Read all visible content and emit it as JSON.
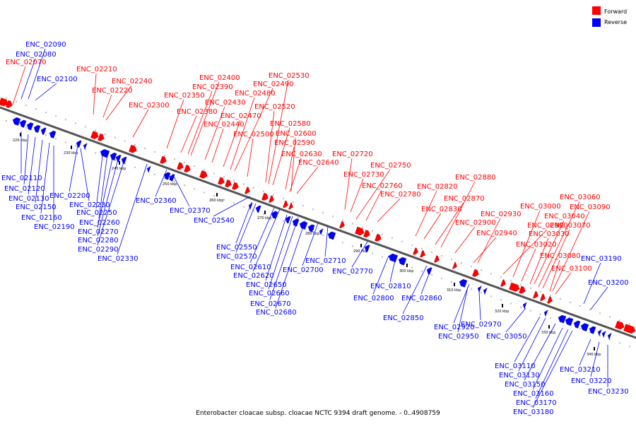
{
  "legend": {
    "forward": "Forward",
    "reverse": "Reverse"
  },
  "colors": {
    "forward": "#ff0000",
    "reverse": "#0000ff",
    "backbone": "#555555",
    "leader_forward": "#ff0000",
    "leader_reverse": "#0000ff"
  },
  "caption": "Enterobacter cloacae subsp. cloacae NCTC 9394 draft genome. - 0..4908759",
  "ticks": [
    "220 kbp",
    "230 kbp",
    "240 kbp",
    "250 kbp",
    "260 kbp",
    "270 kbp",
    "280 kbp",
    "290 kbp",
    "300 kbp",
    "310 kbp",
    "320 kbp",
    "330 kbp",
    "340 kbp"
  ],
  "forward_genes": [
    "ENC_02070",
    "ENC_02210",
    "ENC_02220",
    "ENC_02240",
    "ENC_02300",
    "ENC_02350",
    "ENC_02380",
    "ENC_02390",
    "ENC_02400",
    "ENC_02430",
    "ENC_02440",
    "ENC_02470",
    "ENC_02480",
    "ENC_02490",
    "ENC_02500",
    "ENC_02520",
    "ENC_02530",
    "ENC_02580",
    "ENC_02590",
    "ENC_02600",
    "ENC_02630",
    "ENC_02640",
    "ENC_02720",
    "ENC_02730",
    "ENC_02750",
    "ENC_02760",
    "ENC_02780",
    "ENC_02820",
    "ENC_02830",
    "ENC_02870",
    "ENC_02880",
    "ENC_02900",
    "ENC_02930",
    "ENC_02940",
    "ENC_02990",
    "ENC_03000",
    "ENC_03020",
    "ENC_03030",
    "ENC_03040",
    "ENC_03060",
    "ENC_03070",
    "ENC_03080",
    "ENC_03090",
    "ENC_03100"
  ],
  "reverse_genes": [
    "ENC_02080",
    "ENC_02090",
    "ENC_02100",
    "ENC_02110",
    "ENC_02120",
    "ENC_02130",
    "ENC_02150",
    "ENC_02160",
    "ENC_02190",
    "ENC_02200",
    "ENC_02230",
    "ENC_02250",
    "ENC_02260",
    "ENC_02270",
    "ENC_02280",
    "ENC_02290",
    "ENC_02330",
    "ENC_02360",
    "ENC_02370",
    "ENC_02540",
    "ENC_02550",
    "ENC_02570",
    "ENC_02610",
    "ENC_02620",
    "ENC_02650",
    "ENC_02660",
    "ENC_02670",
    "ENC_02680",
    "ENC_02700",
    "ENC_02710",
    "ENC_02770",
    "ENC_02800",
    "ENC_02810",
    "ENC_02850",
    "ENC_02860",
    "ENC_02920",
    "ENC_02950",
    "ENC_02970",
    "ENC_03050",
    "ENC_03110",
    "ENC_03130",
    "ENC_03150",
    "ENC_03160",
    "ENC_03170",
    "ENC_03180",
    "ENC_03190",
    "ENC_03200",
    "ENC_03210",
    "ENC_03220",
    "ENC_03230"
  ]
}
